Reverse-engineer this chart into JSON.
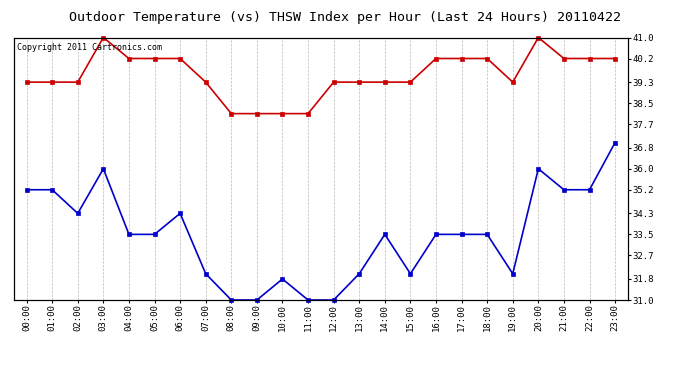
{
  "title": "Outdoor Temperature (vs) THSW Index per Hour (Last 24 Hours) 20110422",
  "copyright_text": "Copyright 2011 Cartronics.com",
  "hours": [
    "00:00",
    "01:00",
    "02:00",
    "03:00",
    "04:00",
    "05:00",
    "06:00",
    "07:00",
    "08:00",
    "09:00",
    "10:00",
    "11:00",
    "12:00",
    "13:00",
    "14:00",
    "15:00",
    "16:00",
    "17:00",
    "18:00",
    "19:00",
    "20:00",
    "21:00",
    "22:00",
    "23:00"
  ],
  "thsw": [
    39.3,
    39.3,
    39.3,
    41.0,
    40.2,
    40.2,
    40.2,
    39.3,
    38.1,
    38.1,
    38.1,
    38.1,
    39.3,
    39.3,
    39.3,
    39.3,
    40.2,
    40.2,
    40.2,
    39.3,
    41.0,
    40.2,
    40.2,
    40.2
  ],
  "temp": [
    35.2,
    35.2,
    34.3,
    36.0,
    33.5,
    33.5,
    34.3,
    32.0,
    31.0,
    31.0,
    31.8,
    31.0,
    31.0,
    32.0,
    33.5,
    32.0,
    33.5,
    33.5,
    33.5,
    32.0,
    36.0,
    35.2,
    35.2,
    37.0
  ],
  "thsw_color": "#cc0000",
  "temp_color": "#0000cc",
  "background_color": "#ffffff",
  "grid_color": "#bbbbbb",
  "ylim": [
    31.0,
    41.0
  ],
  "yticks_right": [
    41.0,
    40.2,
    39.3,
    38.5,
    37.7,
    36.8,
    36.0,
    35.2,
    34.3,
    33.5,
    32.7,
    31.8,
    31.0
  ],
  "title_fontsize": 9.5,
  "copyright_fontsize": 6,
  "tick_fontsize": 6.5,
  "marker": "s",
  "marker_size": 2.5,
  "linewidth": 1.2
}
